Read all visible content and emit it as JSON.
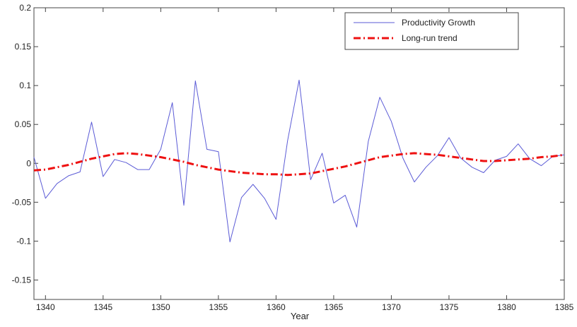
{
  "chart_data": {
    "type": "line",
    "title": "",
    "xlabel": "Year",
    "ylabel": "",
    "xlim": [
      1339,
      1385
    ],
    "ylim": [
      -0.175,
      0.2
    ],
    "xticks": [
      1340,
      1345,
      1350,
      1355,
      1360,
      1365,
      1370,
      1375,
      1380,
      1385
    ],
    "yticks": [
      0.2,
      0.15,
      0.1,
      0.05,
      0,
      -0.05,
      -0.1,
      -0.15
    ],
    "ytick_labels": [
      "0.2",
      "0.15",
      "0.1",
      "0.05",
      "0",
      "-0.05",
      "-0.1",
      "-0.15"
    ],
    "grid": false,
    "legend_position": "top-right",
    "series": [
      {
        "name": "Productivity Growth",
        "color": "#5b5bd6",
        "style": "solid",
        "x": [
          1339,
          1340,
          1341,
          1342,
          1343,
          1344,
          1345,
          1346,
          1347,
          1348,
          1349,
          1350,
          1351,
          1352,
          1353,
          1354,
          1355,
          1356,
          1357,
          1358,
          1359,
          1360,
          1361,
          1362,
          1363,
          1364,
          1365,
          1366,
          1367,
          1368,
          1369,
          1370,
          1371,
          1372,
          1373,
          1374,
          1375,
          1376,
          1377,
          1378,
          1379,
          1380,
          1381,
          1382,
          1383,
          1384,
          1385
        ],
        "y": [
          0.008,
          -0.045,
          -0.026,
          -0.016,
          -0.011,
          0.053,
          -0.017,
          0.005,
          0.001,
          -0.008,
          -0.008,
          0.018,
          0.078,
          -0.054,
          0.106,
          0.018,
          0.015,
          -0.101,
          -0.044,
          -0.027,
          -0.045,
          -0.072,
          0.029,
          0.107,
          -0.021,
          0.013,
          -0.051,
          -0.041,
          -0.082,
          0.028,
          0.085,
          0.054,
          0.007,
          -0.024,
          -0.005,
          0.01,
          0.033,
          0.007,
          -0.005,
          -0.012,
          0.004,
          0.009,
          0.025,
          0.006,
          -0.003,
          0.009,
          0.011
        ]
      },
      {
        "name": "Long-run trend",
        "color": "#ee1111",
        "style": "dash-dot",
        "x": [
          1339,
          1340,
          1341,
          1342,
          1343,
          1344,
          1345,
          1346,
          1347,
          1348,
          1349,
          1350,
          1351,
          1352,
          1353,
          1354,
          1355,
          1356,
          1357,
          1358,
          1359,
          1360,
          1361,
          1362,
          1363,
          1364,
          1365,
          1366,
          1367,
          1368,
          1369,
          1370,
          1371,
          1372,
          1373,
          1374,
          1375,
          1376,
          1377,
          1378,
          1379,
          1380,
          1381,
          1382,
          1383,
          1384,
          1385
        ],
        "y": [
          -0.009,
          -0.008,
          -0.005,
          -0.002,
          0.002,
          0.006,
          0.009,
          0.012,
          0.013,
          0.012,
          0.01,
          0.008,
          0.005,
          0.002,
          -0.002,
          -0.005,
          -0.008,
          -0.01,
          -0.012,
          -0.013,
          -0.014,
          -0.014,
          -0.015,
          -0.014,
          -0.013,
          -0.01,
          -0.007,
          -0.004,
          0.0,
          0.004,
          0.008,
          0.01,
          0.012,
          0.013,
          0.012,
          0.011,
          0.009,
          0.007,
          0.005,
          0.003,
          0.003,
          0.004,
          0.005,
          0.006,
          0.008,
          0.009,
          0.011
        ]
      }
    ]
  }
}
